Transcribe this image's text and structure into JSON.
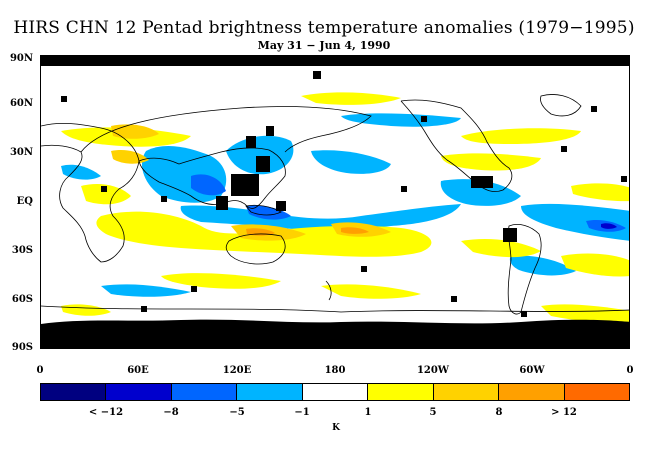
{
  "title": "HIRS CHN 12 Pentad brightness temperature anomalies (1979−1995)",
  "subtitle": "May 31 − Jun 4, 1990",
  "lat_labels": [
    "90N",
    "60N",
    "30N",
    "EQ",
    "30S",
    "60S",
    "90S"
  ],
  "lon_labels": [
    "0",
    "60E",
    "120E",
    "180",
    "120W",
    "60W",
    "0"
  ],
  "colorbar": {
    "colors": [
      "#000080",
      "#0000cd",
      "#0066ff",
      "#00b4ff",
      "#ffffff",
      "#ffff00",
      "#ffd200",
      "#ffa000",
      "#ff6a00",
      "#ff0000"
    ],
    "labels": [
      "< −12",
      "−8",
      "−5",
      "−1",
      "1",
      "5",
      "8",
      "> 12"
    ],
    "unit": "K"
  },
  "colors": {
    "missing": "#000000",
    "coast": "#000000"
  }
}
